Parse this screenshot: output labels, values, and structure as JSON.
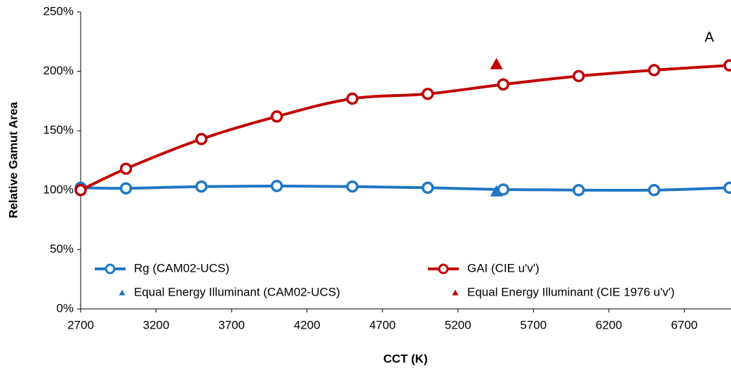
{
  "chart_data": {
    "type": "line",
    "xlabel": "CCT (K)",
    "ylabel": "Relative Gamut Area",
    "annotation": "A",
    "x": [
      2700,
      3000,
      3500,
      4000,
      4500,
      5000,
      5500,
      6000,
      6500,
      7000
    ],
    "series": [
      {
        "name": "Rg (CAM02-UCS)",
        "color": "#1f77c4",
        "values": [
          102,
          101.5,
          103,
          103.5,
          103,
          102,
          100.5,
          100,
          100,
          102
        ]
      },
      {
        "name": "GAI (CIE u'v')",
        "color": "#c00000",
        "values": [
          100,
          118,
          143,
          162,
          177,
          181,
          189,
          196,
          201,
          205
        ]
      },
      {
        "name": "Equal Energy Illuminant (CAM02-UCS)",
        "color": "#1f77c4",
        "type": "scatter",
        "marker": "triangle",
        "x": [
          5455
        ],
        "values": [
          99
        ]
      },
      {
        "name": "Equal Energy Illuminant (CIE 1976 u'v')",
        "color": "#c00000",
        "type": "scatter",
        "marker": "triangle",
        "x": [
          5455
        ],
        "values": [
          206
        ]
      }
    ],
    "xlim": [
      2700,
      7000
    ],
    "xticks": [
      2700,
      3200,
      3700,
      4200,
      4700,
      5200,
      5700,
      6200,
      6700
    ],
    "ylim": [
      0,
      250
    ],
    "yticks": [
      {
        "value": 0,
        "label": "0%"
      },
      {
        "value": 50,
        "label": "50%"
      },
      {
        "value": 100,
        "label": "100%"
      },
      {
        "value": 150,
        "label": "150%"
      },
      {
        "value": 200,
        "label": "200%"
      },
      {
        "value": 250,
        "label": "250%"
      }
    ],
    "grid": false,
    "legend": "lower"
  }
}
